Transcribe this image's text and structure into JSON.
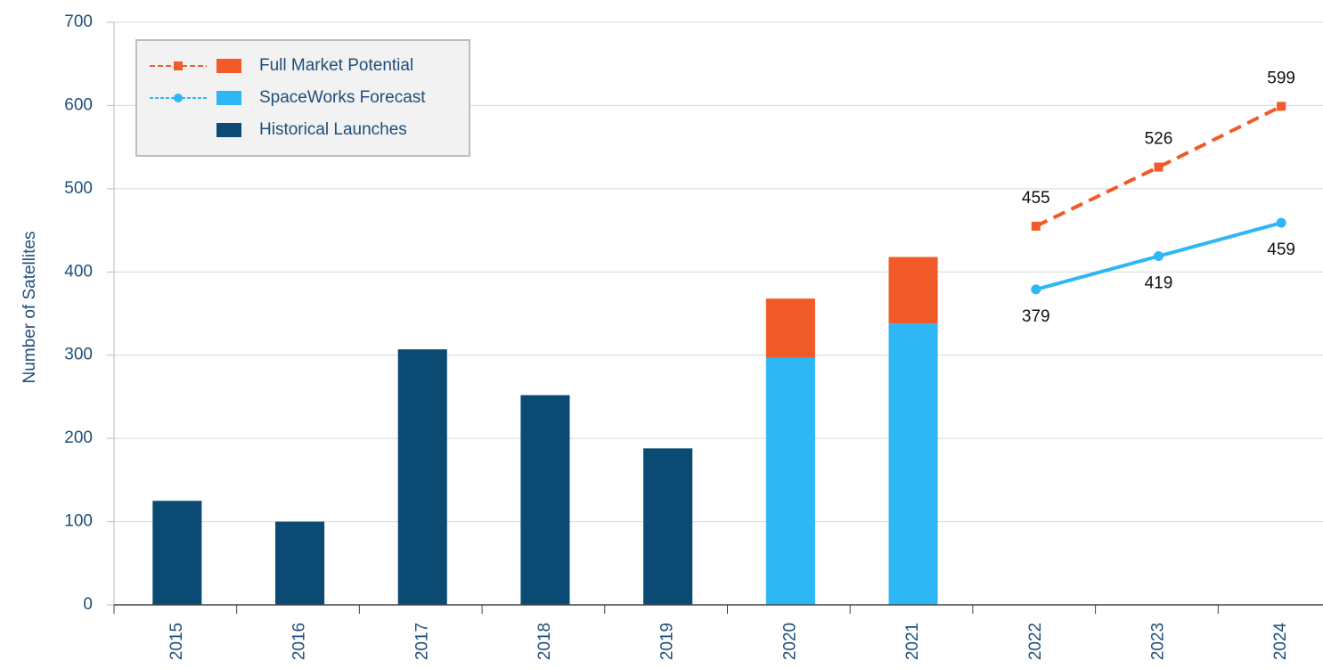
{
  "chart_data": {
    "type": "stacked-bar-line",
    "y_axis_label": "Number of Satellites",
    "categories": [
      "2015",
      "2016",
      "2017",
      "2018",
      "2019",
      "2020",
      "2021",
      "2022",
      "2023",
      "2024"
    ],
    "series": [
      {
        "name": "Full Market Potential",
        "color": "#f15a29",
        "values": [
          null,
          null,
          null,
          null,
          null,
          71,
          80,
          null,
          null,
          null
        ],
        "line_values": [
          null,
          null,
          null,
          null,
          null,
          null,
          null,
          455,
          526,
          599
        ]
      },
      {
        "name": "SpaceWorks Forecast",
        "color": "#2db7f5",
        "values": [
          null,
          null,
          null,
          null,
          null,
          297,
          338,
          null,
          null,
          null
        ],
        "line_values": [
          null,
          null,
          null,
          null,
          null,
          null,
          null,
          379,
          419,
          459
        ]
      },
      {
        "name": "Historical Launches",
        "color": "#0b4a72",
        "values": [
          125,
          100,
          307,
          252,
          188,
          null,
          null,
          null,
          null,
          null
        ]
      }
    ],
    "ylim": [
      0,
      700
    ],
    "yticks": [
      0,
      100,
      200,
      300,
      400,
      500,
      600,
      700
    ],
    "grid": true
  }
}
